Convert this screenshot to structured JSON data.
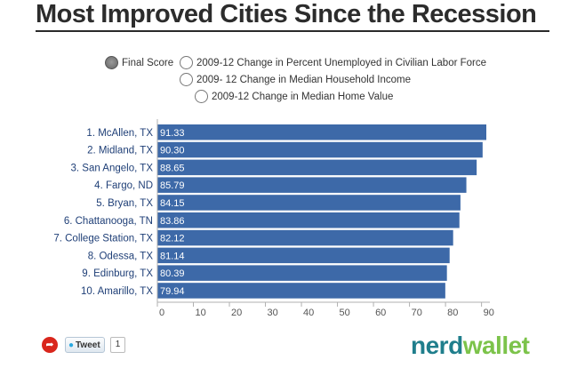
{
  "title": "Most Improved Cities Since the Recession",
  "options": [
    {
      "label": "Final Score",
      "selected": true
    },
    {
      "label": "2009-12 Change in Percent Unemployed in Civilian Labor Force",
      "selected": false
    },
    {
      "label": "2009- 12 Change in Median Household Income",
      "selected": false
    },
    {
      "label": "2009-12 Change in Median Home Value",
      "selected": false
    }
  ],
  "chart_data": {
    "type": "bar",
    "orientation": "horizontal",
    "categories": [
      "1. McAllen, TX",
      "2. Midland, TX",
      "3. San Angelo, TX",
      "4. Fargo, ND",
      "5. Bryan, TX",
      "6. Chattanooga, TN",
      "7. College Station, TX",
      "8. Odessa, TX",
      "9. Edinburg, TX",
      "10. Amarillo, TX"
    ],
    "values": [
      91.33,
      90.3,
      88.65,
      85.79,
      84.15,
      83.86,
      82.12,
      81.14,
      80.39,
      79.94
    ],
    "value_labels": [
      "91.33",
      "90.30",
      "88.65",
      "85.79",
      "84.15",
      "83.86",
      "82.12",
      "81.14",
      "80.39",
      "79.94"
    ],
    "xlim": [
      0,
      91.33
    ],
    "ticks": [
      0,
      10,
      20,
      30,
      40,
      50,
      60,
      70,
      80,
      90
    ],
    "tick_labels": [
      "0",
      "10",
      "20",
      "30",
      "40",
      "50",
      "60",
      "70",
      "80",
      "90"
    ],
    "bar_color": "#3d69a8",
    "axis_color": "#b0b0b0",
    "label_color": "#1f3f77",
    "grid": false
  },
  "share": {
    "icon": "share-icon",
    "color": "#d9261c"
  },
  "tweet": {
    "label": "Tweet",
    "count": "1",
    "icon": "twitter-bird-icon"
  },
  "logo": {
    "part1": "nerd",
    "part2": "wallet",
    "color1": "#1f7e8c",
    "color2": "#7cc34a"
  }
}
